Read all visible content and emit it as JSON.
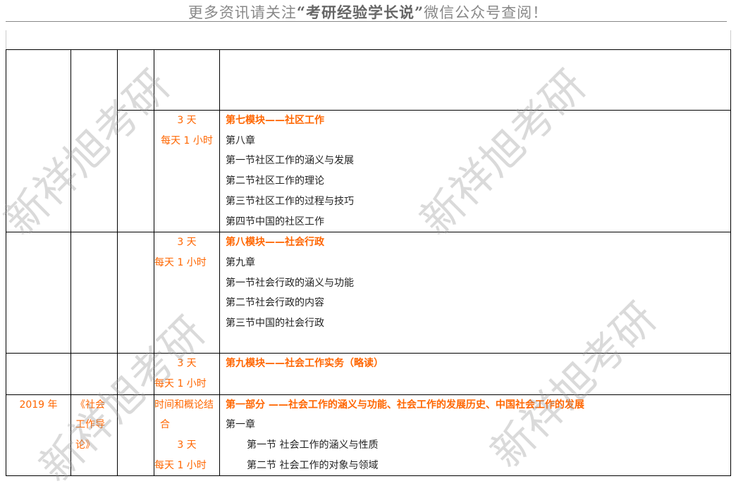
{
  "header": {
    "pre": "更多资讯请关注",
    "quote": "“考研经验学长说”",
    "post": "微信公众号查阅！"
  },
  "watermark": "新祥旭考研",
  "colors": {
    "accent": "#ff6600"
  },
  "rows": [
    {
      "time": [
        "3 天",
        "每天 1 小时"
      ],
      "title": "第七模块——社区工作",
      "items": [
        "第八章",
        "第一节社区工作的涵义与发展",
        "第二节社区工作的理论",
        "第三节社区工作的过程与技巧",
        "第四节中国的社区工作"
      ]
    },
    {
      "time": [
        "3 天",
        "每天 1 小时"
      ],
      "title": "第八模块——社会行政",
      "items": [
        "第九章",
        "第一节社会行政的涵义与功能",
        "第二节社会行政的内容",
        "第三节中国的社会行政"
      ]
    },
    {
      "time": [
        "3 天",
        "每天 1 小时"
      ],
      "title": "第九模块——社会工作实务（略读）",
      "items": []
    },
    {
      "year": "2019 年",
      "book": [
        "《社会",
        "工作导",
        "论》"
      ],
      "time": [
        "时间和概论结",
        "合",
        "3 天",
        "每天 1 小时"
      ],
      "title": "第一部分 ——社会工作的涵义与功能、社会工作的发展历史、中国社会工作的发展",
      "items": [
        "第一章",
        "第一节 社会工作的涵义与性质",
        "第二节 社会工作的对象与领域"
      ]
    }
  ]
}
